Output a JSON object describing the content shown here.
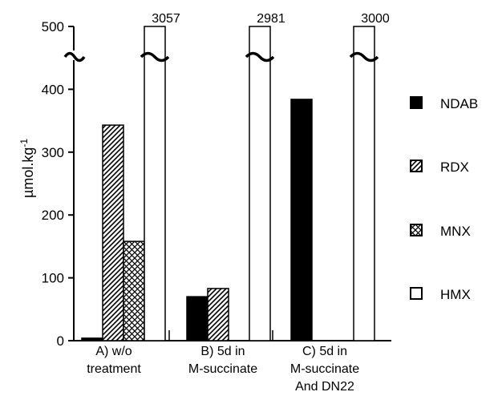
{
  "chart_data": {
    "type": "bar",
    "title": "",
    "xlabel": "",
    "ylabel": "µmol.kg-1",
    "ylim": [
      0,
      500
    ],
    "yticks": [
      0,
      100,
      200,
      300,
      400,
      500
    ],
    "axis_break": true,
    "grid": false,
    "legend_position": "right",
    "categories": [
      [
        "A) w/o",
        "treatment"
      ],
      [
        "B) 5d in",
        "M-succinate"
      ],
      [
        "C) 5d in",
        "M-succinate",
        "And DN22"
      ]
    ],
    "series": [
      {
        "name": "NDAB",
        "pattern": "solid",
        "values": [
          4,
          70,
          384
        ]
      },
      {
        "name": "RDX",
        "pattern": "diagonal",
        "values": [
          343,
          83,
          0
        ]
      },
      {
        "name": "MNX",
        "pattern": "crosshatch",
        "values": [
          158,
          0,
          0
        ]
      },
      {
        "name": "HMX",
        "pattern": "open",
        "values": [
          3057,
          2981,
          3000
        ]
      }
    ],
    "value_labels": [
      "3057",
      "2981",
      "3000"
    ]
  }
}
